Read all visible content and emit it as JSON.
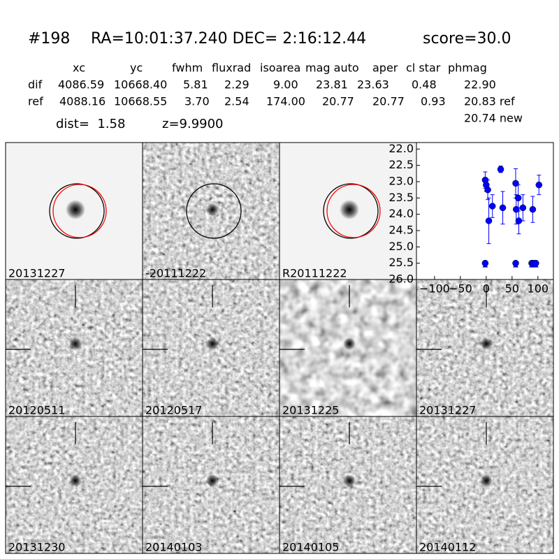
{
  "header": {
    "id": "#198",
    "coords": "RA=10:01:37.240 DEC= 2:16:12.44",
    "score": "score=30.0"
  },
  "table": {
    "columns": [
      "xc",
      "yc",
      "fwhm",
      "fluxrad",
      "isoarea",
      "mag auto",
      "aper",
      "cl star",
      "phmag"
    ],
    "rows": [
      [
        "dif",
        "4086.59",
        "10668.40",
        "5.81",
        "2.29",
        "9.00",
        "23.81",
        "23.63",
        "0.48",
        "22.90"
      ],
      [
        "ref",
        "4088.16",
        "10668.55",
        "3.70",
        "2.54",
        "174.00",
        "20.77",
        "20.77",
        "0.93",
        "20.83 ref"
      ]
    ],
    "extra": "20.74 new"
  },
  "info": {
    "dist": "dist=  1.58",
    "z": "z=9.9900"
  },
  "panels": [
    {
      "label": "20131227"
    },
    {
      "label": "-20111222"
    },
    {
      "label": "R20111222"
    },
    {
      "label": "20120511"
    },
    {
      "label": "20120517"
    },
    {
      "label": "20131225"
    },
    {
      "label": "20131227",
      "label_color": "#ff0000"
    },
    {
      "label": "20131230"
    },
    {
      "label": "20140103"
    },
    {
      "label": "20140105"
    },
    {
      "label": "20140112"
    }
  ],
  "chart_data": {
    "type": "errorbar",
    "color": "#0000ff",
    "x": [
      -2,
      0,
      3,
      5,
      12,
      28,
      32,
      57,
      58,
      62,
      63,
      71,
      90,
      102,
      -2,
      57,
      88,
      92,
      96
    ],
    "values": [
      22.95,
      23.1,
      23.25,
      24.2,
      23.75,
      22.62,
      23.8,
      23.05,
      23.85,
      23.5,
      24.2,
      23.8,
      23.85,
      23.1,
      25.5,
      25.5,
      25.5,
      25.5,
      25.5
    ],
    "errors": [
      0.25,
      0.2,
      0.3,
      0.7,
      0.35,
      0.1,
      0.5,
      0.45,
      0.45,
      0.4,
      0.4,
      0.4,
      0.4,
      0.3,
      null,
      null,
      null,
      null,
      null
    ],
    "xlim": [
      -135,
      130
    ],
    "ylim": [
      26.0,
      21.8
    ],
    "xticks": [
      {
        "value": -100,
        "label": "−100"
      },
      {
        "value": -50,
        "label": "−50"
      },
      0,
      50,
      100
    ],
    "yticks": [
      {
        "value": 22,
        "label": "22.0"
      },
      {
        "value": 22.5,
        "label": "22.5"
      },
      {
        "value": 23,
        "label": "23.0"
      },
      {
        "value": 23.5,
        "label": "23.5"
      },
      {
        "value": 24,
        "label": "24.0"
      },
      {
        "value": 24.5,
        "label": "24.5"
      },
      {
        "value": 25,
        "label": "25.0"
      },
      {
        "value": 25.5,
        "label": "25.5"
      },
      {
        "value": 26,
        "label": "26.0"
      }
    ]
  }
}
